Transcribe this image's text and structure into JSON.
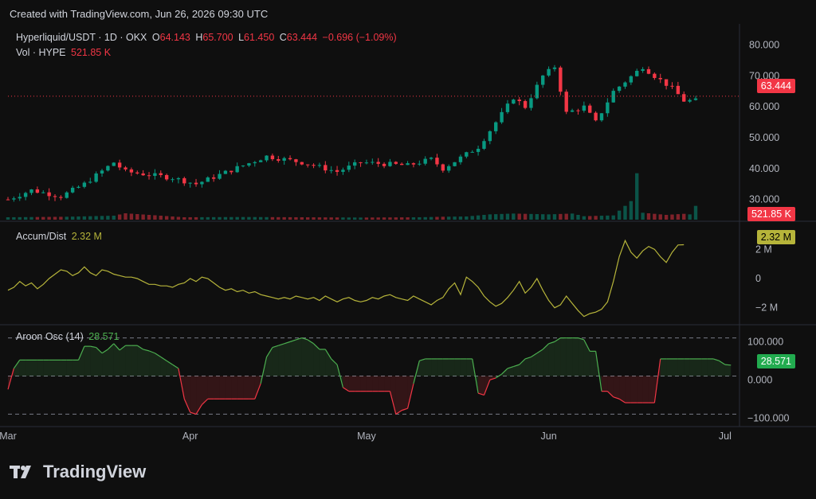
{
  "header": {
    "created": "Created with TradingView.com, Jun 26, 2026 09:30 UTC"
  },
  "legend": {
    "symbol": "Hyperliquid/USDT · 1D · OKX",
    "o_label": "O",
    "o": "64.143",
    "h_label": "H",
    "h": "65.700",
    "l_label": "L",
    "l": "61.450",
    "c_label": "C",
    "c": "63.444",
    "change": "−0.696 (−1.09%)",
    "vol_label": "Vol · HYPE",
    "vol": "521.85 K"
  },
  "indicators": {
    "ad_label": "Accum/Dist",
    "ad_value": "2.32 M",
    "aroon_label": "Aroon Osc (14)",
    "aroon_value": "28.571"
  },
  "badges": {
    "price": "63.444",
    "volume": "521.85 K",
    "ad": "2.32 M",
    "aroon": "28.571"
  },
  "brand": {
    "name": "TradingView"
  },
  "colors": {
    "up": "#089981",
    "down": "#f23645",
    "ad_line": "#b6b43a",
    "aroon_up": "#4caf50",
    "aroon_down": "#f23645"
  },
  "chart_data": {
    "type": "candlestick",
    "price_axis": {
      "ticks": [
        "80.000",
        "70.000",
        "60.000",
        "50.000",
        "40.000",
        "30.000"
      ],
      "tick_values": [
        80,
        70,
        60,
        50,
        40,
        30
      ],
      "range": [
        25,
        83
      ]
    },
    "ad_axis": {
      "ticks": [
        "2 M",
        "0",
        "−2 M"
      ],
      "tick_values": [
        2,
        0,
        -2
      ],
      "range": [
        -3,
        3
      ]
    },
    "aroon_axis": {
      "ticks": [
        "100.000",
        "0.000",
        "−100.000"
      ],
      "tick_values": [
        100,
        0,
        -100
      ],
      "range": [
        -120,
        120
      ]
    },
    "x_labels": [
      {
        "label": "Mar",
        "day": 0
      },
      {
        "label": "Apr",
        "day": 31
      },
      {
        "label": "May",
        "day": 61
      },
      {
        "label": "Jun",
        "day": 92
      },
      {
        "label": "Jul",
        "day": 122
      }
    ],
    "x_range": [
      0,
      125
    ],
    "price_anchors": [
      [
        0,
        30
      ],
      [
        4,
        33
      ],
      [
        9,
        31
      ],
      [
        13,
        35
      ],
      [
        18,
        42
      ],
      [
        20,
        39
      ],
      [
        28,
        37
      ],
      [
        32,
        35
      ],
      [
        36,
        38
      ],
      [
        44,
        44
      ],
      [
        50,
        42
      ],
      [
        56,
        39
      ],
      [
        60,
        42
      ],
      [
        68,
        41
      ],
      [
        72,
        43
      ],
      [
        74,
        40
      ],
      [
        80,
        47
      ],
      [
        86,
        63
      ],
      [
        88,
        60
      ],
      [
        91,
        70
      ],
      [
        93,
        73
      ],
      [
        95,
        58
      ],
      [
        98,
        60
      ],
      [
        100,
        55
      ],
      [
        103,
        65
      ],
      [
        108,
        73
      ],
      [
        110,
        70
      ],
      [
        113,
        66
      ],
      [
        115,
        62
      ],
      [
        117,
        62
      ]
    ],
    "volume_anchors": [
      [
        0,
        90
      ],
      [
        10,
        110
      ],
      [
        18,
        150
      ],
      [
        20,
        240
      ],
      [
        30,
        90
      ],
      [
        40,
        100
      ],
      [
        50,
        90
      ],
      [
        60,
        80
      ],
      [
        70,
        90
      ],
      [
        74,
        110
      ],
      [
        78,
        120
      ],
      [
        82,
        200
      ],
      [
        86,
        230
      ],
      [
        92,
        200
      ],
      [
        96,
        230
      ],
      [
        98,
        130
      ],
      [
        103,
        160
      ],
      [
        106,
        700
      ],
      [
        107,
        1750
      ],
      [
        108,
        260
      ],
      [
        112,
        180
      ],
      [
        115,
        220
      ],
      [
        116,
        200
      ],
      [
        117,
        520
      ]
    ],
    "ad_values": [
      -0.8,
      -0.6,
      -0.2,
      -0.5,
      -0.3,
      -0.7,
      -0.4,
      0,
      0.3,
      0.6,
      0.5,
      0.2,
      0.4,
      0.8,
      0.4,
      0.2,
      0.6,
      0.5,
      0.3,
      0.2,
      0.1,
      0.1,
      0,
      -0.2,
      -0.4,
      -0.4,
      -0.5,
      -0.5,
      -0.6,
      -0.4,
      -0.3,
      0,
      -0.2,
      0.1,
      0,
      -0.3,
      -0.6,
      -0.8,
      -0.7,
      -0.9,
      -0.8,
      -1,
      -0.9,
      -1.1,
      -1.2,
      -1.3,
      -1.4,
      -1.3,
      -1.4,
      -1.2,
      -1.3,
      -1.4,
      -1.3,
      -1.5,
      -1.2,
      -1.4,
      -1.6,
      -1.4,
      -1.3,
      -1.5,
      -1.6,
      -1.5,
      -1.3,
      -1.4,
      -1.2,
      -1.1,
      -1.3,
      -1.4,
      -1.5,
      -1.2,
      -1.4,
      -1.6,
      -1.8,
      -1.5,
      -1.3,
      -0.7,
      -0.3,
      -1.1,
      0.1,
      -0.2,
      -0.6,
      -1.2,
      -1.6,
      -1.9,
      -1.7,
      -1.3,
      -0.8,
      -0.2,
      -1,
      -0.6,
      0,
      -0.8,
      -1.5,
      -2,
      -1.8,
      -1.2,
      -1.7,
      -2.2,
      -2.6,
      -2.4,
      -2.3,
      -2.1,
      -1.6,
      -0.2,
      1.5,
      2.6,
      1.8,
      1.4,
      1.9,
      2.2,
      2,
      1.5,
      1.1,
      1.8,
      2.3,
      2.32
    ],
    "aroon_values": [
      -35,
      20,
      42,
      42,
      42,
      42,
      42,
      42,
      42,
      42,
      42,
      42,
      42,
      78,
      78,
      75,
      60,
      70,
      85,
      68,
      80,
      80,
      80,
      70,
      66,
      60,
      50,
      40,
      30,
      20,
      -60,
      -95,
      -100,
      -75,
      -60,
      -60,
      -60,
      -60,
      -60,
      -60,
      -60,
      -60,
      -60,
      -20,
      50,
      75,
      80,
      85,
      90,
      95,
      100,
      95,
      85,
      70,
      70,
      45,
      30,
      -30,
      -40,
      -40,
      -40,
      -40,
      -40,
      -40,
      -40,
      -40,
      -100,
      -90,
      -85,
      -20,
      40,
      45,
      45,
      45,
      45,
      45,
      45,
      45,
      45,
      45,
      -45,
      -50,
      -10,
      -5,
      5,
      20,
      25,
      30,
      45,
      50,
      60,
      70,
      85,
      90,
      100,
      100,
      100,
      100,
      95,
      65,
      65,
      -40,
      -40,
      -55,
      -60,
      -70,
      -70,
      -70,
      -70,
      -70,
      -70,
      45,
      45,
      45,
      45,
      45,
      45,
      45,
      45,
      45,
      45,
      40,
      30,
      28.571
    ]
  }
}
